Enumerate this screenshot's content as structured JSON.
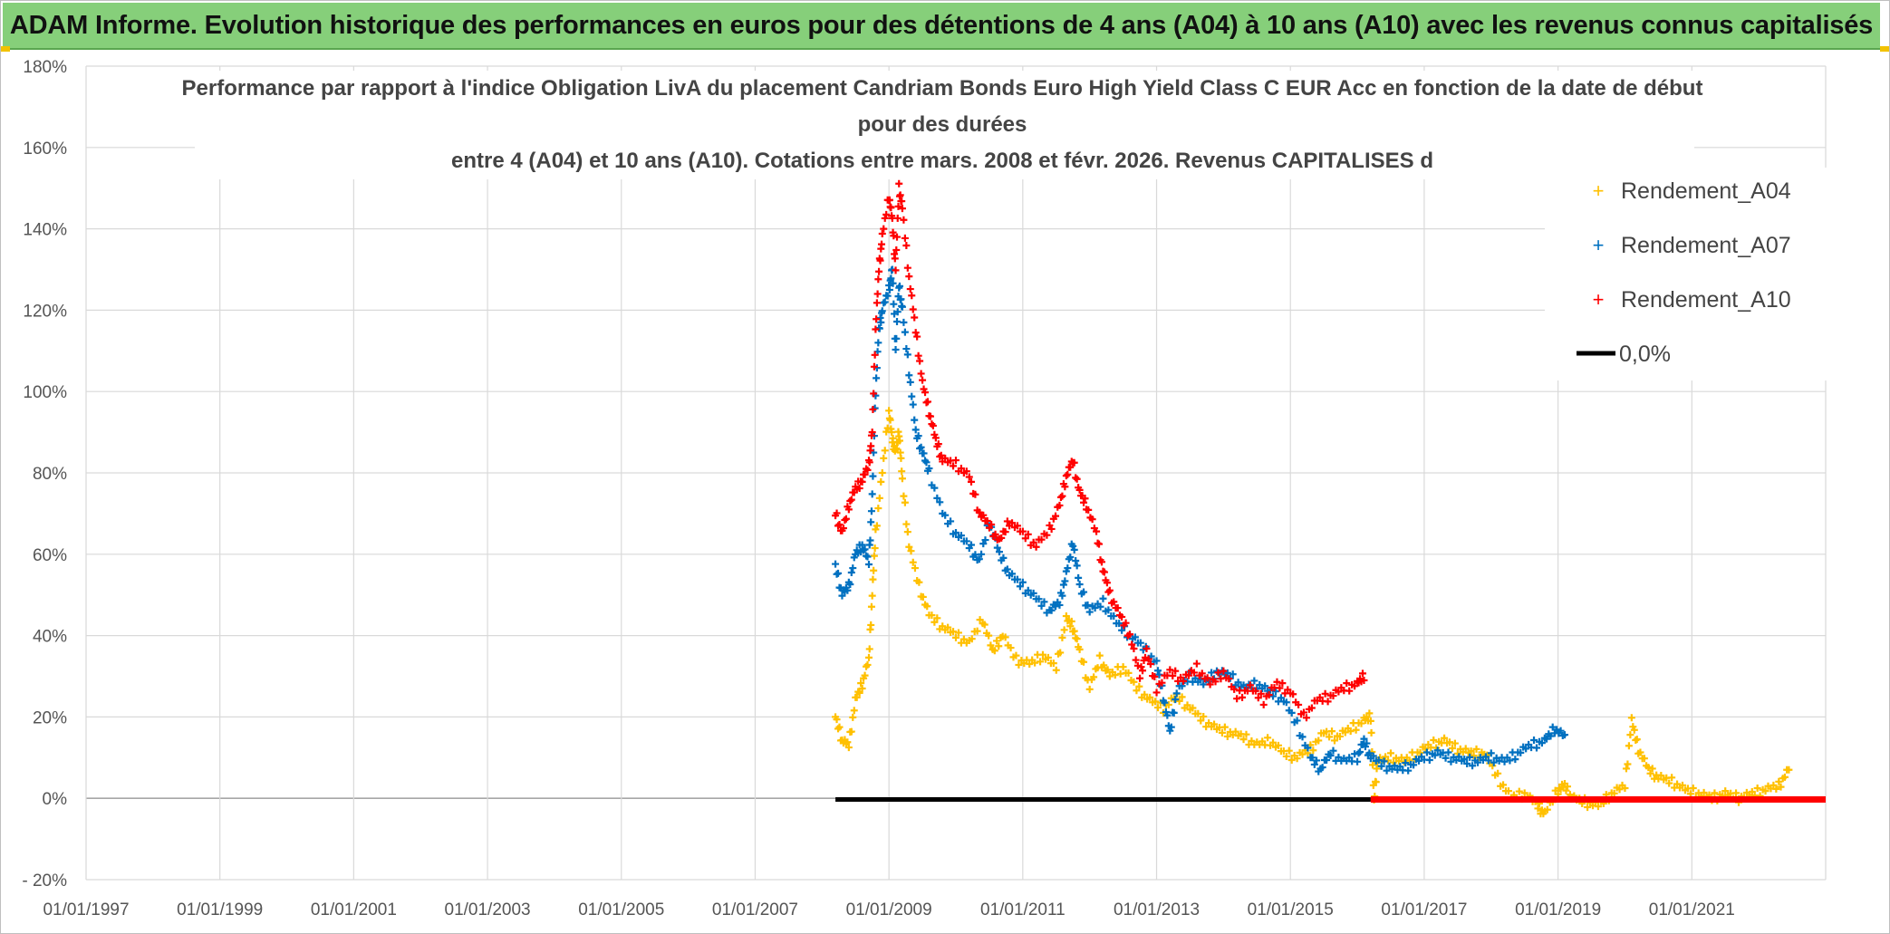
{
  "header": {
    "title": "ADAM Informe. Evolution historique des performances en euros pour des détentions de 4 ans (A04) à 10 ans (A10) avec les revenus connus capitalisés"
  },
  "chart_data": {
    "type": "scatter",
    "title_lines": [
      "Performance par rapport à l'indice Obligation LivA  du placement Candriam Bonds Euro High Yield Class C EUR Acc en fonction de la date de début",
      "pour des durées",
      "entre 4 (A04) et 10 ans (A10). Cotations entre mars. 2008 et févr. 2026. Revenus CAPITALISES d"
    ],
    "x_range": [
      1997.0,
      2023.0
    ],
    "y_range": [
      -20,
      180
    ],
    "x_tick_values": [
      1997,
      1999,
      2001,
      2003,
      2005,
      2007,
      2009,
      2011,
      2013,
      2015,
      2017,
      2019,
      2021
    ],
    "x_tick_labels": [
      "01/01/1997",
      "01/01/1999",
      "01/01/2001",
      "01/01/2003",
      "01/01/2005",
      "01/01/2007",
      "01/01/2009",
      "01/01/2011",
      "01/01/2013",
      "01/01/2015",
      "01/01/2017",
      "01/01/2019",
      "01/01/2021"
    ],
    "y_tick_values": [
      -20,
      0,
      20,
      40,
      60,
      80,
      100,
      120,
      140,
      160,
      180
    ],
    "y_tick_labels": [
      "- 20%",
      "0%",
      "20%",
      "40%",
      "60%",
      "80%",
      "100%",
      "120%",
      "140%",
      "160%",
      "180%"
    ],
    "legend": [
      {
        "name": "Rendement_A04",
        "marker": "+",
        "color": "#ffc000"
      },
      {
        "name": "Rendement_A07",
        "marker": "+",
        "color": "#0070c0"
      },
      {
        "name": "Rendement_A10",
        "marker": "+",
        "color": "#ff0000"
      },
      {
        "name": "0,0%",
        "marker": "line",
        "color": "#000000"
      }
    ],
    "series": [
      {
        "name": "Rendement_A04",
        "color": "#ffc000",
        "points": [
          [
            2008.2,
            20
          ],
          [
            2008.3,
            14
          ],
          [
            2008.4,
            13
          ],
          [
            2008.5,
            24
          ],
          [
            2008.6,
            28
          ],
          [
            2008.7,
            34
          ],
          [
            2008.75,
            50
          ],
          [
            2008.8,
            65
          ],
          [
            2008.9,
            80
          ],
          [
            2009.0,
            95
          ],
          [
            2009.05,
            88
          ],
          [
            2009.1,
            85
          ],
          [
            2009.15,
            90
          ],
          [
            2009.2,
            78
          ],
          [
            2009.3,
            62
          ],
          [
            2009.45,
            52
          ],
          [
            2009.6,
            45
          ],
          [
            2009.8,
            42
          ],
          [
            2010.0,
            40
          ],
          [
            2010.2,
            38
          ],
          [
            2010.4,
            44
          ],
          [
            2010.55,
            36
          ],
          [
            2010.7,
            40
          ],
          [
            2010.9,
            34
          ],
          [
            2011.1,
            33
          ],
          [
            2011.3,
            35
          ],
          [
            2011.5,
            32
          ],
          [
            2011.65,
            44
          ],
          [
            2011.75,
            42
          ],
          [
            2011.85,
            36
          ],
          [
            2012.0,
            27
          ],
          [
            2012.15,
            34
          ],
          [
            2012.3,
            30
          ],
          [
            2012.5,
            32
          ],
          [
            2012.7,
            27
          ],
          [
            2012.9,
            24
          ],
          [
            2013.1,
            22
          ],
          [
            2013.3,
            25
          ],
          [
            2013.5,
            22
          ],
          [
            2013.7,
            19
          ],
          [
            2013.9,
            17
          ],
          [
            2014.1,
            16
          ],
          [
            2014.3,
            15
          ],
          [
            2014.5,
            13
          ],
          [
            2014.7,
            14
          ],
          [
            2014.9,
            11
          ],
          [
            2015.1,
            10
          ],
          [
            2015.3,
            12
          ],
          [
            2015.5,
            16
          ],
          [
            2015.7,
            15
          ],
          [
            2015.9,
            17
          ],
          [
            2016.1,
            19
          ],
          [
            2016.2,
            20
          ],
          [
            2016.25,
            -1
          ],
          [
            2016.3,
            9
          ],
          [
            2016.5,
            10
          ],
          [
            2016.7,
            9
          ],
          [
            2016.9,
            11
          ],
          [
            2017.1,
            13
          ],
          [
            2017.3,
            14
          ],
          [
            2017.5,
            12
          ],
          [
            2017.7,
            11
          ],
          [
            2017.9,
            11
          ],
          [
            2018.1,
            5
          ],
          [
            2018.3,
            0
          ],
          [
            2018.5,
            1
          ],
          [
            2018.7,
            -2
          ],
          [
            2018.8,
            -4
          ],
          [
            2019.0,
            2
          ],
          [
            2019.1,
            3
          ],
          [
            2019.2,
            0
          ],
          [
            2019.4,
            -1
          ],
          [
            2019.6,
            -2
          ],
          [
            2019.8,
            1
          ],
          [
            2020.0,
            3
          ],
          [
            2020.1,
            19
          ],
          [
            2020.2,
            12
          ],
          [
            2020.35,
            7
          ],
          [
            2020.5,
            5
          ],
          [
            2020.7,
            4
          ],
          [
            2020.9,
            2
          ],
          [
            2021.1,
            1
          ],
          [
            2021.3,
            0
          ],
          [
            2021.5,
            1
          ],
          [
            2021.7,
            0
          ],
          [
            2021.9,
            1
          ],
          [
            2022.1,
            2
          ],
          [
            2022.3,
            3
          ],
          [
            2022.45,
            7
          ]
        ]
      },
      {
        "name": "Rendement_A07",
        "color": "#0070c0",
        "points": [
          [
            2008.2,
            57
          ],
          [
            2008.3,
            50
          ],
          [
            2008.4,
            52
          ],
          [
            2008.5,
            60
          ],
          [
            2008.6,
            62
          ],
          [
            2008.7,
            58
          ],
          [
            2008.75,
            74
          ],
          [
            2008.8,
            100
          ],
          [
            2008.85,
            115
          ],
          [
            2008.9,
            120
          ],
          [
            2009.0,
            125
          ],
          [
            2009.05,
            130
          ],
          [
            2009.1,
            110
          ],
          [
            2009.15,
            126
          ],
          [
            2009.2,
            120
          ],
          [
            2009.3,
            105
          ],
          [
            2009.4,
            90
          ],
          [
            2009.5,
            85
          ],
          [
            2009.6,
            80
          ],
          [
            2009.8,
            70
          ],
          [
            2010.0,
            65
          ],
          [
            2010.2,
            62
          ],
          [
            2010.35,
            58
          ],
          [
            2010.5,
            68
          ],
          [
            2010.65,
            60
          ],
          [
            2010.8,
            55
          ],
          [
            2011.0,
            52
          ],
          [
            2011.2,
            49
          ],
          [
            2011.4,
            46
          ],
          [
            2011.55,
            48
          ],
          [
            2011.65,
            55
          ],
          [
            2011.75,
            63
          ],
          [
            2011.85,
            52
          ],
          [
            2012.0,
            46
          ],
          [
            2012.2,
            48
          ],
          [
            2012.4,
            43
          ],
          [
            2012.6,
            40
          ],
          [
            2012.8,
            37
          ],
          [
            2013.0,
            33
          ],
          [
            2013.1,
            25
          ],
          [
            2013.2,
            16
          ],
          [
            2013.3,
            26
          ],
          [
            2013.5,
            30
          ],
          [
            2013.7,
            28
          ],
          [
            2013.9,
            31
          ],
          [
            2014.1,
            30
          ],
          [
            2014.3,
            27
          ],
          [
            2014.5,
            28
          ],
          [
            2014.7,
            26
          ],
          [
            2014.9,
            24
          ],
          [
            2015.1,
            18
          ],
          [
            2015.3,
            10
          ],
          [
            2015.45,
            7
          ],
          [
            2015.6,
            11
          ],
          [
            2015.8,
            9
          ],
          [
            2016.0,
            10
          ],
          [
            2016.1,
            14
          ],
          [
            2016.2,
            10
          ],
          [
            2016.4,
            8
          ],
          [
            2016.6,
            7
          ],
          [
            2016.8,
            8
          ],
          [
            2017.0,
            10
          ],
          [
            2017.2,
            11
          ],
          [
            2017.4,
            10
          ],
          [
            2017.6,
            9
          ],
          [
            2017.8,
            9
          ],
          [
            2018.0,
            10
          ],
          [
            2018.2,
            9
          ],
          [
            2018.4,
            11
          ],
          [
            2018.6,
            13
          ],
          [
            2018.8,
            14
          ],
          [
            2018.95,
            17
          ],
          [
            2019.1,
            15
          ]
        ]
      },
      {
        "name": "Rendement_A10",
        "color": "#ff0000",
        "points": [
          [
            2008.2,
            70
          ],
          [
            2008.3,
            65
          ],
          [
            2008.4,
            72
          ],
          [
            2008.5,
            76
          ],
          [
            2008.6,
            78
          ],
          [
            2008.7,
            82
          ],
          [
            2008.75,
            90
          ],
          [
            2008.8,
            115
          ],
          [
            2008.85,
            130
          ],
          [
            2008.9,
            138
          ],
          [
            2009.0,
            148
          ],
          [
            2009.05,
            142
          ],
          [
            2009.1,
            130
          ],
          [
            2009.15,
            150
          ],
          [
            2009.2,
            145
          ],
          [
            2009.3,
            128
          ],
          [
            2009.4,
            115
          ],
          [
            2009.5,
            102
          ],
          [
            2009.6,
            95
          ],
          [
            2009.7,
            88
          ],
          [
            2009.8,
            83
          ],
          [
            2010.0,
            82
          ],
          [
            2010.2,
            79
          ],
          [
            2010.35,
            70
          ],
          [
            2010.5,
            67
          ],
          [
            2010.65,
            63
          ],
          [
            2010.8,
            68
          ],
          [
            2011.0,
            65
          ],
          [
            2011.2,
            62
          ],
          [
            2011.4,
            66
          ],
          [
            2011.55,
            72
          ],
          [
            2011.65,
            79
          ],
          [
            2011.75,
            83
          ],
          [
            2011.85,
            75
          ],
          [
            2011.95,
            72
          ],
          [
            2012.1,
            65
          ],
          [
            2012.2,
            56
          ],
          [
            2012.3,
            50
          ],
          [
            2012.45,
            45
          ],
          [
            2012.6,
            40
          ],
          [
            2012.75,
            30
          ],
          [
            2012.85,
            36
          ],
          [
            2013.0,
            27
          ],
          [
            2013.2,
            31
          ],
          [
            2013.4,
            29
          ],
          [
            2013.6,
            32
          ],
          [
            2013.8,
            28
          ],
          [
            2014.0,
            31
          ],
          [
            2014.2,
            25
          ],
          [
            2014.4,
            27
          ],
          [
            2014.6,
            24
          ],
          [
            2014.8,
            28
          ],
          [
            2015.0,
            26
          ],
          [
            2015.2,
            20
          ],
          [
            2015.4,
            24
          ],
          [
            2015.6,
            25
          ],
          [
            2015.8,
            27
          ],
          [
            2016.0,
            28
          ],
          [
            2016.1,
            30
          ]
        ]
      }
    ],
    "zero_line_segments": [
      {
        "color": "#000000",
        "x_range": [
          2008.2,
          2016.2
        ],
        "y": -0.3
      },
      {
        "color": "#ff0000",
        "x_range": [
          2016.2,
          2023.0
        ],
        "y": -0.3
      }
    ]
  }
}
